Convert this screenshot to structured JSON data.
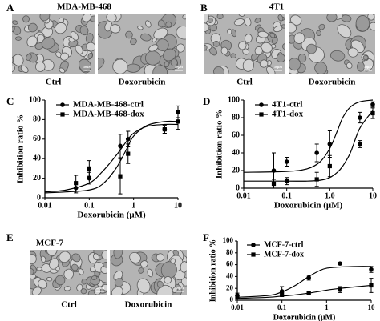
{
  "panels": [
    {
      "label": "A",
      "title": "MDA-MB-468",
      "images": [
        {
          "caption": "Ctrl"
        },
        {
          "caption": "Doxorubicin"
        }
      ]
    },
    {
      "label": "B",
      "title": "4T1",
      "images": [
        {
          "caption": "Ctrl"
        },
        {
          "caption": "Doxorubicin"
        }
      ]
    },
    {
      "label": "E",
      "title": "MCF-7",
      "images": [
        {
          "caption": "Ctrl"
        },
        {
          "caption": "Doxorubicin"
        }
      ]
    }
  ],
  "scale_label": "50μM",
  "chart_data": [
    {
      "type": "line",
      "panel_label": "C",
      "x_label": "Doxorubicin (μM)",
      "y_label": "Inhibition ratio %",
      "log_x": true,
      "xlim": [
        0.01,
        10
      ],
      "xticks": [
        0.01,
        0.1,
        1,
        10
      ],
      "ylim": [
        0,
        100
      ],
      "yticks": [
        0,
        20,
        40,
        60,
        80,
        100
      ],
      "legend": "top-left",
      "series": [
        {
          "name": "MDA-MB-468-ctrl",
          "marker": "circle",
          "color": "#000000",
          "x": [
            0.05,
            0.1,
            0.5,
            0.75,
            5,
            10
          ],
          "values": [
            10,
            20,
            53,
            60,
            70,
            88
          ],
          "errors": [
            5,
            6,
            12,
            8,
            4,
            6
          ],
          "curve": {
            "x": [
              0.01,
              0.03,
              0.1,
              0.2,
              0.4,
              0.7,
              1,
              2,
              5,
              10
            ],
            "values": [
              6,
              8,
              15,
              27,
              43,
              58,
              66,
              73,
              75,
              75
            ]
          }
        },
        {
          "name": "MDA-MB-468-dox",
          "marker": "square",
          "color": "#000000",
          "x": [
            0.05,
            0.1,
            0.5,
            0.75,
            5,
            10
          ],
          "values": [
            15,
            30,
            22,
            45,
            70,
            78
          ],
          "errors": [
            8,
            8,
            18,
            10,
            4,
            8
          ],
          "curve": {
            "x": [
              0.01,
              0.03,
              0.1,
              0.2,
              0.4,
              0.7,
              1,
              2,
              5,
              10
            ],
            "values": [
              5,
              6,
              8,
              14,
              30,
              50,
              63,
              74,
              78,
              78
            ]
          }
        }
      ]
    },
    {
      "type": "line",
      "panel_label": "D",
      "x_label": "Doxorubicin (μM)",
      "y_label": "Inhibition ratio %",
      "log_x": true,
      "xlim": [
        0.01,
        10
      ],
      "xticks": [
        0.01,
        0.1,
        {
          "value": 1,
          "label": "1.0"
        },
        10
      ],
      "ylim": [
        0,
        100
      ],
      "yticks": [
        0,
        20,
        40,
        60,
        80,
        100
      ],
      "legend": "top-left",
      "series": [
        {
          "name": "4T1-ctrl",
          "marker": "circle",
          "color": "#000000",
          "x": [
            0.05,
            0.1,
            0.5,
            1,
            5,
            10
          ],
          "values": [
            20,
            30,
            40,
            50,
            80,
            95
          ],
          "errors": [
            20,
            5,
            10,
            15,
            6,
            3
          ],
          "curve": {
            "x": [
              0.01,
              0.1,
              0.3,
              0.6,
              1,
              1.5,
              2,
              3,
              5,
              10
            ],
            "values": [
              18,
              19,
              22,
              30,
              45,
              65,
              80,
              92,
              98,
              100
            ]
          }
        },
        {
          "name": "4T1-dox",
          "marker": "square",
          "color": "#000000",
          "x": [
            0.05,
            0.1,
            0.5,
            1,
            5,
            10
          ],
          "values": [
            5,
            8,
            10,
            25,
            50,
            85
          ],
          "errors": [
            5,
            4,
            8,
            12,
            4,
            6
          ],
          "curve": {
            "x": [
              0.01,
              0.1,
              0.3,
              0.6,
              1,
              1.5,
              2,
              3,
              5,
              10
            ],
            "values": [
              8,
              8,
              8,
              9,
              12,
              18,
              25,
              40,
              68,
              88
            ]
          }
        }
      ]
    },
    {
      "type": "line",
      "panel_label": "F",
      "x_label": "Doxorubicin (μM)",
      "y_label": "Inhibition ratio %",
      "log_x": true,
      "xlim": [
        0.01,
        10
      ],
      "xticks": [
        0.01,
        0.1,
        1,
        10
      ],
      "ylim": [
        0,
        100
      ],
      "yticks": [
        0,
        20,
        40,
        60,
        80,
        100
      ],
      "legend": "top-left",
      "series": [
        {
          "name": "MCF-7-ctrl",
          "marker": "circle",
          "color": "#000000",
          "x": [
            0.01,
            0.1,
            0.4,
            2,
            10
          ],
          "values": [
            8,
            15,
            38,
            62,
            52
          ],
          "errors": [
            4,
            8,
            4,
            2,
            5
          ],
          "curve": {
            "x": [
              0.01,
              0.05,
              0.1,
              0.2,
              0.4,
              0.7,
              1,
              2,
              5,
              10
            ],
            "values": [
              5,
              8,
              14,
              25,
              40,
              50,
              54,
              56,
              57,
              57
            ]
          }
        },
        {
          "name": "MCF-7-dox",
          "marker": "square",
          "color": "#000000",
          "x": [
            0.01,
            0.1,
            0.4,
            2,
            10
          ],
          "values": [
            5,
            10,
            12,
            18,
            25
          ],
          "errors": [
            3,
            4,
            2,
            5,
            12
          ],
          "curve": {
            "x": [
              0.01,
              0.05,
              0.1,
              0.2,
              0.4,
              0.7,
              1,
              2,
              5,
              10
            ],
            "values": [
              3,
              5,
              7,
              9,
              12,
              15,
              17,
              20,
              23,
              25
            ]
          }
        }
      ]
    }
  ]
}
